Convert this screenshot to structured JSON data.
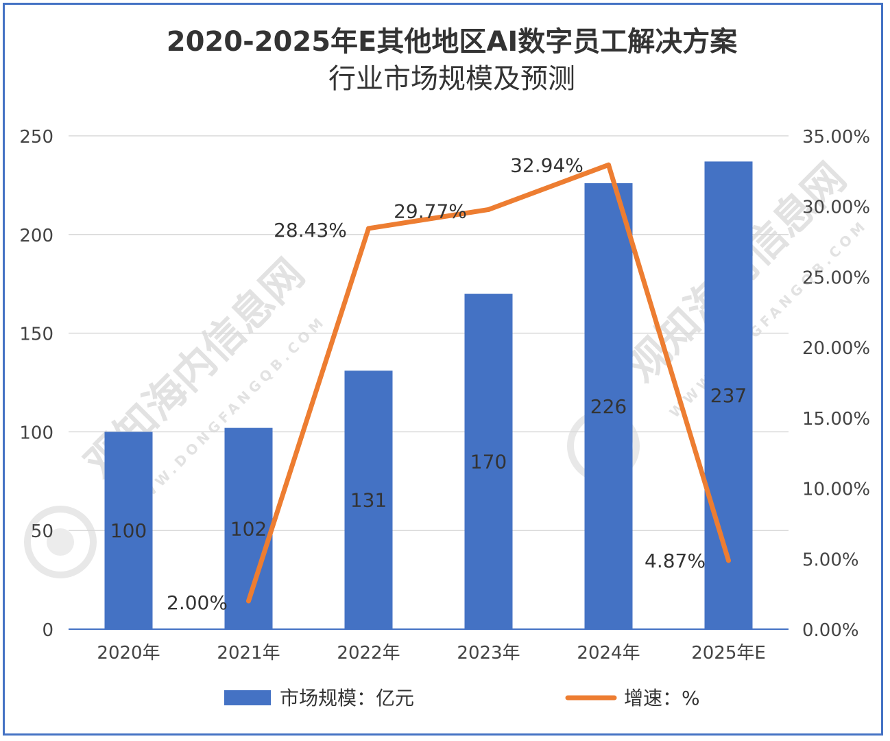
{
  "chart_data": {
    "type": "bar",
    "title_line1": "2020-2025年E其他地区AI数字员工解决方案",
    "title_line2": "行业市场规模及预测",
    "categories": [
      "2020年",
      "2021年",
      "2022年",
      "2023年",
      "2024年",
      "2025年E"
    ],
    "series": [
      {
        "name": "市场规模：亿元",
        "type": "bar",
        "axis": "left",
        "color": "#4472c4",
        "values": [
          100,
          102,
          131,
          170,
          226,
          237
        ],
        "labels": [
          "100",
          "102",
          "131",
          "170",
          "226",
          "237"
        ]
      },
      {
        "name": "增速：%",
        "type": "line",
        "axis": "right",
        "color": "#ed7d31",
        "values": [
          null,
          2.0,
          28.43,
          29.77,
          32.94,
          4.87
        ],
        "labels": [
          "",
          "2.00%",
          "28.43%",
          "29.77%",
          "32.94%",
          "4.87%"
        ]
      }
    ],
    "y_left": {
      "min": 0,
      "max": 250,
      "ticks": [
        0,
        50,
        100,
        150,
        200,
        250
      ],
      "tick_labels": [
        "0",
        "50",
        "100",
        "150",
        "200",
        "250"
      ]
    },
    "y_right": {
      "min": 0,
      "max": 35,
      "ticks": [
        0,
        5,
        10,
        15,
        20,
        25,
        30,
        35
      ],
      "tick_labels": [
        "0.00%",
        "5.00%",
        "10.00%",
        "15.00%",
        "20.00%",
        "25.00%",
        "30.00%",
        "35.00%"
      ]
    },
    "grid": true,
    "legend_position": "bottom"
  },
  "watermark": {
    "brand": "观知海内信息网",
    "url": "WWW.DONGFANGQB.COM"
  }
}
